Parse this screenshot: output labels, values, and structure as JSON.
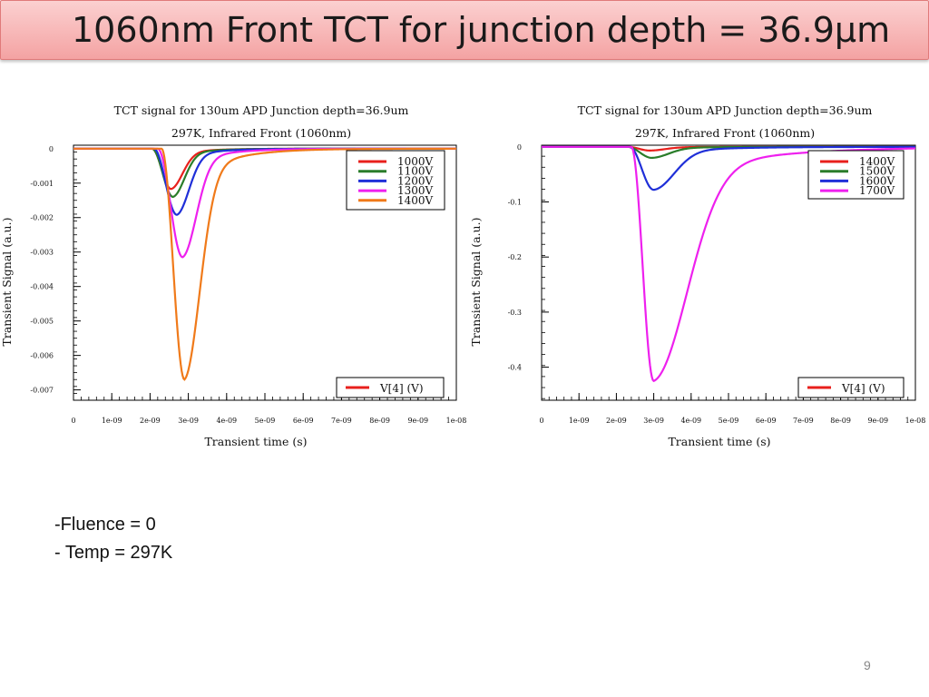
{
  "slide": {
    "title": "1060nm Front TCT for junction depth = 36.9µm",
    "notes": [
      "-Fluence = 0",
      "- Temp = 297K"
    ],
    "page_number": "9"
  },
  "colors": {
    "title_bg": "#f4a3a3"
  },
  "chart_data": [
    {
      "type": "line",
      "title": "TCT signal for 130um APD Junction depth=36.9um",
      "subtitle": "297K, Infrared Front (1060nm)",
      "xlabel": "Transient time (s)",
      "ylabel": "Transient Signal (a.u.)",
      "xlim": [
        0,
        1e-08
      ],
      "ylim": [
        -0.0073,
        0.0001
      ],
      "xticks": [
        0,
        1e-09,
        2e-09,
        3e-09,
        4e-09,
        5e-09,
        6e-09,
        7e-09,
        8e-09,
        9e-09,
        1e-08
      ],
      "xtick_labels": [
        "0",
        "1e-09",
        "2e-09",
        "3e-09",
        "4e-09",
        "5e-09",
        "6e-09",
        "7e-09",
        "8e-09",
        "9e-09",
        "1e-08"
      ],
      "yticks": [
        0,
        -0.001,
        -0.002,
        -0.003,
        -0.004,
        -0.005,
        -0.006,
        -0.007
      ],
      "ytick_labels": [
        "0",
        "-0.001",
        "-0.002",
        "-0.003",
        "-0.004",
        "-0.005",
        "-0.006",
        "-0.007"
      ],
      "legend_location": "top-right",
      "legend_group_label": "V[4] (V)",
      "series": [
        {
          "name": "1000V",
          "color": "#e8201c",
          "peak": -0.00117,
          "t_peak": 2.55e-09,
          "t_start": 2.05e-09,
          "tail": 3e-10
        },
        {
          "name": "1100V",
          "color": "#2a7d2a",
          "peak": -0.0014,
          "t_peak": 2.6e-09,
          "t_start": 2.05e-09,
          "tail": 3e-10
        },
        {
          "name": "1200V",
          "color": "#1f2fd8",
          "peak": -0.00192,
          "t_peak": 2.7e-09,
          "t_start": 2.1e-09,
          "tail": 3.2e-10
        },
        {
          "name": "1300V",
          "color": "#ee20ee",
          "peak": -0.00315,
          "t_peak": 2.85e-09,
          "t_start": 2.2e-09,
          "tail": 3.6e-10
        },
        {
          "name": "1400V",
          "color": "#f07a1a",
          "peak": -0.0067,
          "t_peak": 2.9e-09,
          "t_start": 2.3e-09,
          "tail": 4e-10
        }
      ]
    },
    {
      "type": "line",
      "title": "TCT signal for 130um APD Junction depth=36.9um",
      "subtitle": "297K, Infrared Front (1060nm)",
      "xlabel": "Transient time (s)",
      "ylabel": "Transient Signal (a.u.)",
      "xlim": [
        0,
        1e-08
      ],
      "ylim": [
        -0.46,
        0.003
      ],
      "xticks": [
        0,
        1e-09,
        2e-09,
        3e-09,
        4e-09,
        5e-09,
        6e-09,
        7e-09,
        8e-09,
        9e-09,
        1e-08
      ],
      "xtick_labels": [
        "0",
        "1e-09",
        "2e-09",
        "3e-09",
        "4e-09",
        "5e-09",
        "6e-09",
        "7e-09",
        "8e-09",
        "9e-09",
        "1e-08"
      ],
      "yticks": [
        0,
        -0.1,
        -0.2,
        -0.3,
        -0.4
      ],
      "ytick_labels": [
        "0",
        "-0.1",
        "-0.2",
        "-0.3",
        "-0.4"
      ],
      "legend_location": "top-right",
      "legend_group_label": "V[4] (V)",
      "series": [
        {
          "name": "1400V",
          "color": "#e8201c",
          "peak": -0.0067,
          "t_peak": 2.9e-09,
          "t_start": 2.3e-09,
          "tail": 4e-10
        },
        {
          "name": "1500V",
          "color": "#2a7d2a",
          "peak": -0.02,
          "t_peak": 2.95e-09,
          "t_start": 2.3e-09,
          "tail": 4.5e-10
        },
        {
          "name": "1600V",
          "color": "#1f2fd8",
          "peak": -0.078,
          "t_peak": 3e-09,
          "t_start": 2.35e-09,
          "tail": 5.5e-10
        },
        {
          "name": "1700V",
          "color": "#ee20ee",
          "peak": -0.425,
          "t_peak": 3e-09,
          "t_start": 2.4e-09,
          "tail": 9e-10
        }
      ]
    }
  ]
}
